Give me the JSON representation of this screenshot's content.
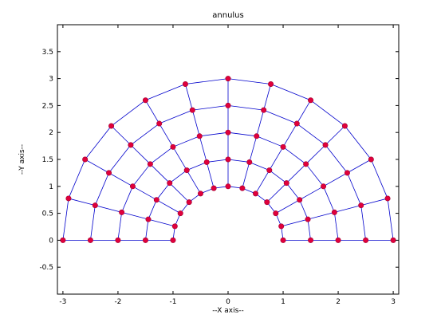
{
  "chart_data": {
    "type": "scatter",
    "title": "annulus",
    "xlabel": "--X axis--",
    "ylabel": "--Y axis--",
    "xlim": [
      -3.1,
      3.1
    ],
    "ylim": [
      -1.0,
      4.0
    ],
    "xticks": [
      "-3",
      "-2",
      "-1",
      "0",
      "1",
      "2",
      "3"
    ],
    "yticks": [
      "-0.5",
      "0",
      "0.5",
      "1",
      "1.5",
      "2",
      "2.5",
      "3",
      "3.5"
    ],
    "grid": false,
    "mesh": {
      "shape": "half-annulus",
      "inner_radius": 1,
      "outer_radius": 3,
      "radial_levels": [
        1,
        1.5,
        2,
        2.5,
        3
      ],
      "angle_divisions": 12,
      "angle_range_deg": [
        0,
        180
      ]
    },
    "series": [
      {
        "line_color": "#0000cc",
        "marker_color": "#e0003c",
        "points": [
          [
            1.0,
            0.0
          ],
          [
            0.966,
            0.259
          ],
          [
            0.866,
            0.5
          ],
          [
            0.707,
            0.707
          ],
          [
            0.5,
            0.866
          ],
          [
            0.259,
            0.966
          ],
          [
            0.0,
            1.0
          ],
          [
            -0.259,
            0.966
          ],
          [
            -0.5,
            0.866
          ],
          [
            -0.707,
            0.707
          ],
          [
            -0.866,
            0.5
          ],
          [
            -0.966,
            0.259
          ],
          [
            -1.0,
            0.0
          ],
          [
            1.5,
            0.0
          ],
          [
            1.449,
            0.388
          ],
          [
            1.299,
            0.75
          ],
          [
            1.061,
            1.061
          ],
          [
            0.75,
            1.299
          ],
          [
            0.388,
            1.449
          ],
          [
            0.0,
            1.5
          ],
          [
            -0.388,
            1.449
          ],
          [
            -0.75,
            1.299
          ],
          [
            -1.061,
            1.061
          ],
          [
            -1.299,
            0.75
          ],
          [
            -1.449,
            0.388
          ],
          [
            -1.5,
            0.0
          ],
          [
            2.0,
            0.0
          ],
          [
            1.932,
            0.518
          ],
          [
            1.732,
            1.0
          ],
          [
            1.414,
            1.414
          ],
          [
            1.0,
            1.732
          ],
          [
            0.518,
            1.932
          ],
          [
            0.0,
            2.0
          ],
          [
            -0.518,
            1.932
          ],
          [
            -1.0,
            1.732
          ],
          [
            -1.414,
            1.414
          ],
          [
            -1.732,
            1.0
          ],
          [
            -1.932,
            0.518
          ],
          [
            -2.0,
            0.0
          ],
          [
            2.5,
            0.0
          ],
          [
            2.415,
            0.647
          ],
          [
            2.165,
            1.25
          ],
          [
            1.768,
            1.768
          ],
          [
            1.25,
            2.165
          ],
          [
            0.647,
            2.415
          ],
          [
            0.0,
            2.5
          ],
          [
            -0.647,
            2.415
          ],
          [
            -1.25,
            2.165
          ],
          [
            -1.768,
            1.768
          ],
          [
            -2.165,
            1.25
          ],
          [
            -2.415,
            0.647
          ],
          [
            -2.5,
            0.0
          ],
          [
            3.0,
            0.0
          ],
          [
            2.898,
            0.776
          ],
          [
            2.598,
            1.5
          ],
          [
            2.121,
            2.121
          ],
          [
            1.5,
            2.598
          ],
          [
            0.776,
            2.898
          ],
          [
            0.0,
            3.0
          ],
          [
            -0.776,
            2.898
          ],
          [
            -1.5,
            2.598
          ],
          [
            -2.121,
            2.121
          ],
          [
            -2.598,
            1.5
          ],
          [
            -2.898,
            0.776
          ],
          [
            -3.0,
            0.0
          ]
        ]
      }
    ]
  }
}
